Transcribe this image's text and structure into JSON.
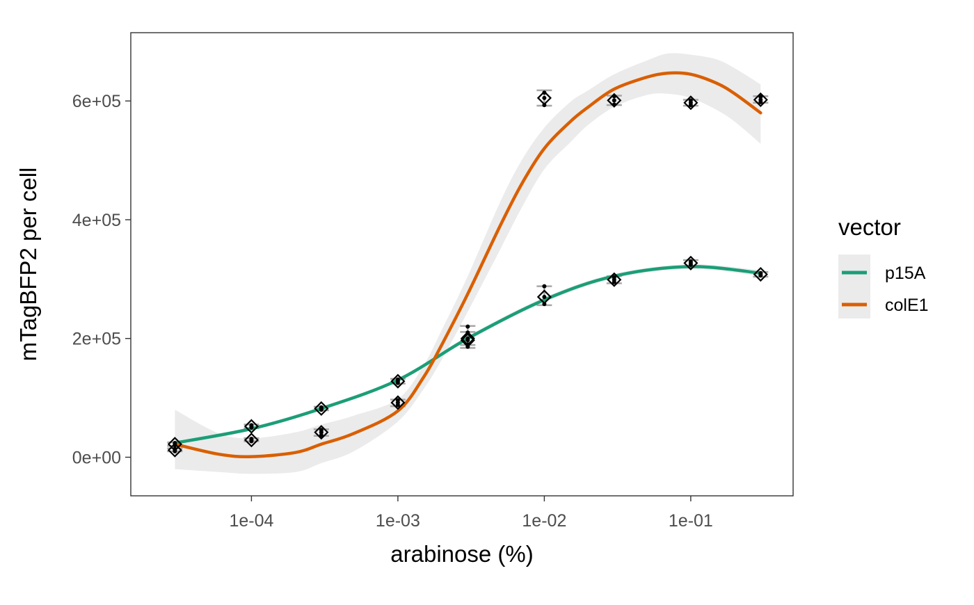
{
  "chart_data": {
    "type": "scatter",
    "xlabel": "arabinose (%)",
    "ylabel": "mTagBFP2 per cell",
    "x_scale": "log10",
    "xlim": [
      1.5e-05,
      0.5
    ],
    "ylim": [
      -65000,
      715000
    ],
    "x_ticks": [
      {
        "value": 0.0001,
        "label": "1e-04"
      },
      {
        "value": 0.001,
        "label": "1e-03"
      },
      {
        "value": 0.01,
        "label": "1e-02"
      },
      {
        "value": 0.1,
        "label": "1e-01"
      }
    ],
    "y_ticks": [
      {
        "value": 0,
        "label": "0e+00"
      },
      {
        "value": 200000,
        "label": "2e+05"
      },
      {
        "value": 400000,
        "label": "4e+05"
      },
      {
        "value": 600000,
        "label": "6e+05"
      }
    ],
    "grid": false,
    "legend": {
      "title": "vector",
      "position": "right",
      "entries": [
        {
          "label": "p15A",
          "color": "#1b9e77"
        },
        {
          "label": "colE1",
          "color": "#d95f02"
        }
      ]
    },
    "series": [
      {
        "name": "p15A",
        "color": "#1b9e77",
        "x": [
          3e-05,
          0.0001,
          0.0003,
          0.001,
          0.003,
          0.01,
          0.03,
          0.1,
          0.3
        ],
        "mean": [
          22000,
          52000,
          82000,
          128000,
          200000,
          270000,
          299000,
          327000,
          308000
        ],
        "err_low": [
          19000,
          49000,
          79000,
          124000,
          189000,
          256000,
          293000,
          322000,
          304000
        ],
        "err_high": [
          25000,
          55000,
          85000,
          132000,
          211000,
          288000,
          305000,
          332000,
          312000
        ],
        "replicates": [
          [
            22000,
            20000,
            24000
          ],
          [
            52000,
            50000,
            54000
          ],
          [
            82000,
            80000,
            84000
          ],
          [
            128000,
            125000,
            131000
          ],
          [
            200000,
            190000,
            210000
          ],
          [
            270000,
            258000,
            288000
          ],
          [
            299000,
            295000,
            303000
          ],
          [
            327000,
            324000,
            330000
          ],
          [
            308000,
            306000,
            310000
          ]
        ],
        "smooth_x": [
          3e-05,
          0.0001,
          0.0003,
          0.001,
          0.003,
          0.01,
          0.03,
          0.1,
          0.3
        ],
        "smooth_y": [
          24000,
          48000,
          82000,
          130000,
          200000,
          265000,
          305000,
          321000,
          310000
        ],
        "band_low": [
          21000,
          45000,
          79000,
          127000,
          196000,
          261000,
          301000,
          317000,
          305000
        ],
        "band_high": [
          27000,
          51000,
          85000,
          133000,
          204000,
          269000,
          309000,
          325000,
          315000
        ]
      },
      {
        "name": "colE1",
        "color": "#d95f02",
        "x": [
          3e-05,
          0.0001,
          0.0003,
          0.001,
          0.003,
          0.01,
          0.03,
          0.1,
          0.3
        ],
        "mean": [
          12000,
          29000,
          42000,
          92000,
          197000,
          605000,
          601000,
          597000,
          602000
        ],
        "err_low": [
          10000,
          27000,
          36000,
          86000,
          184000,
          592000,
          593000,
          592000,
          597000
        ],
        "err_high": [
          15000,
          32000,
          47000,
          97000,
          221000,
          618000,
          609000,
          602000,
          608000
        ],
        "replicates": [
          [
            12000,
            10000,
            14000
          ],
          [
            29000,
            27000,
            31000
          ],
          [
            42000,
            37000,
            46000
          ],
          [
            92000,
            88000,
            96000
          ],
          [
            197000,
            186000,
            220000
          ],
          [
            605000,
            593000,
            614000
          ],
          [
            601000,
            594000,
            608000
          ],
          [
            597000,
            593000,
            601000
          ],
          [
            602000,
            598000,
            607000
          ]
        ],
        "smooth_x": [
          3e-05,
          6e-05,
          0.0001,
          0.0002,
          0.0003,
          0.0005,
          0.001,
          0.0015,
          0.002,
          0.003,
          0.005,
          0.007,
          0.01,
          0.015,
          0.02,
          0.03,
          0.05,
          0.07,
          0.1,
          0.15,
          0.2,
          0.3
        ],
        "smooth_y": [
          22000,
          5000,
          1000,
          8000,
          22000,
          40000,
          78000,
          135000,
          190000,
          275000,
          390000,
          460000,
          520000,
          565000,
          590000,
          620000,
          640000,
          647000,
          645000,
          630000,
          612000,
          580000
        ],
        "band_low": [
          -20000,
          -25000,
          -28000,
          -25000,
          -10000,
          10000,
          60000,
          115000,
          165000,
          245000,
          350000,
          420000,
          485000,
          530000,
          560000,
          590000,
          610000,
          612000,
          605000,
          585000,
          565000,
          528000
        ],
        "band_high": [
          80000,
          40000,
          32000,
          42000,
          55000,
          70000,
          98000,
          155000,
          215000,
          305000,
          430000,
          500000,
          555000,
          598000,
          618000,
          645000,
          668000,
          680000,
          678000,
          670000,
          655000,
          628000
        ]
      }
    ]
  }
}
